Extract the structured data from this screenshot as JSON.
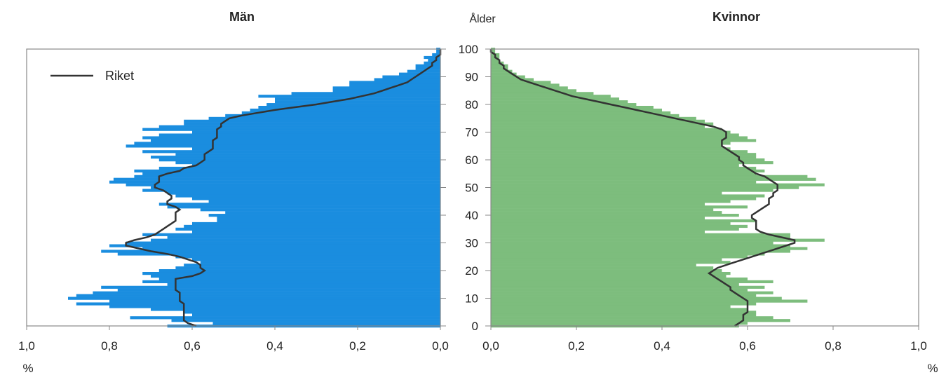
{
  "chart_data": {
    "type": "bar",
    "orientation": "horizontal-population-pyramid",
    "age_axis_label": "Ålder",
    "age_ticks": [
      "0",
      "10",
      "20",
      "30",
      "40",
      "50",
      "60",
      "70",
      "80",
      "90",
      "100"
    ],
    "age_range": [
      0,
      100
    ],
    "unit_label": "%",
    "grid": false,
    "legend_position": "top-left",
    "legend": [
      {
        "label": "Riket",
        "style": "line"
      }
    ],
    "colors": {
      "men": "#1a8ddf",
      "women": "#7dbd7d",
      "line": "#333333",
      "frame": "#888888"
    },
    "panels": [
      {
        "title": "Män",
        "direction": "left",
        "xlim": [
          1.0,
          0.0
        ],
        "x_tick_labels": [
          "1,0",
          "0,8",
          "0,6",
          "0,4",
          "0,2",
          "0,0"
        ],
        "series": [
          {
            "kind": "bars",
            "values_by_age": [
              0.66,
              0.55,
              0.65,
              0.75,
              0.6,
              0.62,
              0.7,
              0.8,
              0.88,
              0.8,
              0.9,
              0.88,
              0.84,
              0.78,
              0.82,
              0.66,
              0.72,
              0.68,
              0.7,
              0.72,
              0.68,
              0.64,
              0.62,
              0.58,
              0.6,
              0.64,
              0.78,
              0.82,
              0.72,
              0.8,
              0.76,
              0.7,
              0.66,
              0.72,
              0.6,
              0.64,
              0.62,
              0.6,
              0.54,
              0.54,
              0.56,
              0.52,
              0.58,
              0.66,
              0.68,
              0.56,
              0.6,
              0.64,
              0.66,
              0.72,
              0.7,
              0.76,
              0.8,
              0.79,
              0.74,
              0.72,
              0.74,
              0.68,
              0.6,
              0.64,
              0.68,
              0.7,
              0.64,
              0.72,
              0.6,
              0.76,
              0.74,
              0.7,
              0.72,
              0.68,
              0.6,
              0.72,
              0.68,
              0.62,
              0.62,
              0.56,
              0.52,
              0.48,
              0.46,
              0.44,
              0.42,
              0.4,
              0.4,
              0.44,
              0.36,
              0.26,
              0.26,
              0.22,
              0.22,
              0.16,
              0.14,
              0.1,
              0.08,
              0.06,
              0.06,
              0.04,
              0.03,
              0.04,
              0.02,
              0.01,
              0.01
            ]
          },
          {
            "name": "Riket",
            "kind": "line",
            "x": [
              0.59,
              0.61,
              0.62,
              0.62,
              0.62,
              0.62,
              0.62,
              0.62,
              0.62,
              0.63,
              0.63,
              0.63,
              0.63,
              0.64,
              0.64,
              0.64,
              0.64,
              0.64,
              0.6,
              0.58,
              0.57,
              0.58,
              0.58,
              0.59,
              0.61,
              0.63,
              0.66,
              0.7,
              0.73,
              0.76,
              0.76,
              0.74,
              0.71,
              0.69,
              0.68,
              0.67,
              0.66,
              0.65,
              0.64,
              0.64,
              0.64,
              0.64,
              0.63,
              0.64,
              0.66,
              0.66,
              0.65,
              0.65,
              0.66,
              0.67,
              0.69,
              0.69,
              0.68,
              0.68,
              0.68,
              0.66,
              0.63,
              0.62,
              0.59,
              0.58,
              0.57,
              0.57,
              0.57,
              0.56,
              0.55,
              0.55,
              0.55,
              0.55,
              0.54,
              0.54,
              0.54,
              0.54,
              0.53,
              0.53,
              0.52,
              0.51,
              0.48,
              0.44,
              0.4,
              0.35,
              0.3,
              0.26,
              0.22,
              0.19,
              0.16,
              0.14,
              0.12,
              0.1,
              0.08,
              0.07,
              0.06,
              0.05,
              0.04,
              0.03,
              0.02,
              0.02,
              0.01,
              0.01,
              0.0,
              0.0,
              0.0
            ],
            "y": [
              0,
              1,
              2,
              3,
              4,
              5,
              6,
              7,
              8,
              9,
              10,
              11,
              12,
              13,
              14,
              15,
              16,
              17,
              18,
              19,
              20,
              21,
              22,
              23,
              24,
              25,
              26,
              27,
              28,
              29,
              30,
              31,
              32,
              33,
              34,
              35,
              36,
              37,
              38,
              39,
              40,
              41,
              42,
              43,
              44,
              45,
              46,
              47,
              48,
              49,
              50,
              51,
              52,
              53,
              54,
              55,
              56,
              57,
              58,
              59,
              60,
              61,
              62,
              63,
              64,
              65,
              66,
              67,
              68,
              69,
              70,
              71,
              72,
              73,
              74,
              75,
              76,
              77,
              78,
              79,
              80,
              81,
              82,
              83,
              84,
              85,
              86,
              87,
              88,
              89,
              90,
              91,
              92,
              93,
              94,
              95,
              96,
              97,
              98,
              99,
              100
            ]
          }
        ]
      },
      {
        "title": "Kvinnor",
        "direction": "right",
        "xlim": [
          0.0,
          1.0
        ],
        "x_tick_labels": [
          "0,0",
          "0,2",
          "0,4",
          "0,6",
          "0,8",
          "1,0"
        ],
        "series": [
          {
            "kind": "bars",
            "values_by_age": [
              0.58,
              0.6,
              0.7,
              0.66,
              0.62,
              0.62,
              0.6,
              0.56,
              0.62,
              0.74,
              0.68,
              0.62,
              0.66,
              0.6,
              0.64,
              0.58,
              0.66,
              0.6,
              0.55,
              0.56,
              0.54,
              0.52,
              0.48,
              0.56,
              0.54,
              0.6,
              0.64,
              0.7,
              0.74,
              0.7,
              0.66,
              0.78,
              0.7,
              0.7,
              0.5,
              0.58,
              0.6,
              0.56,
              0.62,
              0.5,
              0.58,
              0.54,
              0.52,
              0.6,
              0.5,
              0.56,
              0.62,
              0.64,
              0.54,
              0.66,
              0.72,
              0.78,
              0.62,
              0.76,
              0.74,
              0.62,
              0.64,
              0.62,
              0.58,
              0.66,
              0.64,
              0.62,
              0.62,
              0.6,
              0.56,
              0.54,
              0.56,
              0.62,
              0.6,
              0.58,
              0.56,
              0.54,
              0.5,
              0.52,
              0.5,
              0.48,
              0.44,
              0.42,
              0.4,
              0.38,
              0.34,
              0.32,
              0.3,
              0.28,
              0.24,
              0.2,
              0.18,
              0.16,
              0.14,
              0.1,
              0.08,
              0.06,
              0.05,
              0.04,
              0.04,
              0.03,
              0.02,
              0.02,
              0.02,
              0.01,
              0.01
            ]
          },
          {
            "name": "Riket",
            "kind": "line",
            "x": [
              0.57,
              0.58,
              0.59,
              0.59,
              0.59,
              0.6,
              0.6,
              0.6,
              0.6,
              0.6,
              0.59,
              0.58,
              0.57,
              0.56,
              0.56,
              0.55,
              0.54,
              0.53,
              0.52,
              0.51,
              0.52,
              0.53,
              0.55,
              0.57,
              0.59,
              0.61,
              0.63,
              0.65,
              0.67,
              0.69,
              0.71,
              0.71,
              0.68,
              0.65,
              0.63,
              0.62,
              0.62,
              0.62,
              0.62,
              0.61,
              0.61,
              0.62,
              0.63,
              0.64,
              0.65,
              0.65,
              0.65,
              0.66,
              0.66,
              0.67,
              0.67,
              0.67,
              0.66,
              0.65,
              0.64,
              0.62,
              0.61,
              0.6,
              0.59,
              0.59,
              0.58,
              0.58,
              0.57,
              0.56,
              0.55,
              0.54,
              0.54,
              0.54,
              0.55,
              0.55,
              0.55,
              0.54,
              0.52,
              0.49,
              0.46,
              0.43,
              0.4,
              0.37,
              0.34,
              0.31,
              0.28,
              0.25,
              0.22,
              0.19,
              0.17,
              0.15,
              0.13,
              0.11,
              0.09,
              0.07,
              0.06,
              0.05,
              0.04,
              0.03,
              0.03,
              0.02,
              0.02,
              0.01,
              0.01,
              0.0,
              0.0
            ],
            "y": [
              0,
              1,
              2,
              3,
              4,
              5,
              6,
              7,
              8,
              9,
              10,
              11,
              12,
              13,
              14,
              15,
              16,
              17,
              18,
              19,
              20,
              21,
              22,
              23,
              24,
              25,
              26,
              27,
              28,
              29,
              30,
              31,
              32,
              33,
              34,
              35,
              36,
              37,
              38,
              39,
              40,
              41,
              42,
              43,
              44,
              45,
              46,
              47,
              48,
              49,
              50,
              51,
              52,
              53,
              54,
              55,
              56,
              57,
              58,
              59,
              60,
              61,
              62,
              63,
              64,
              65,
              66,
              67,
              68,
              69,
              70,
              71,
              72,
              73,
              74,
              75,
              76,
              77,
              78,
              79,
              80,
              81,
              82,
              83,
              84,
              85,
              86,
              87,
              88,
              89,
              90,
              91,
              92,
              93,
              94,
              95,
              96,
              97,
              98,
              99,
              100
            ]
          }
        ]
      }
    ]
  }
}
